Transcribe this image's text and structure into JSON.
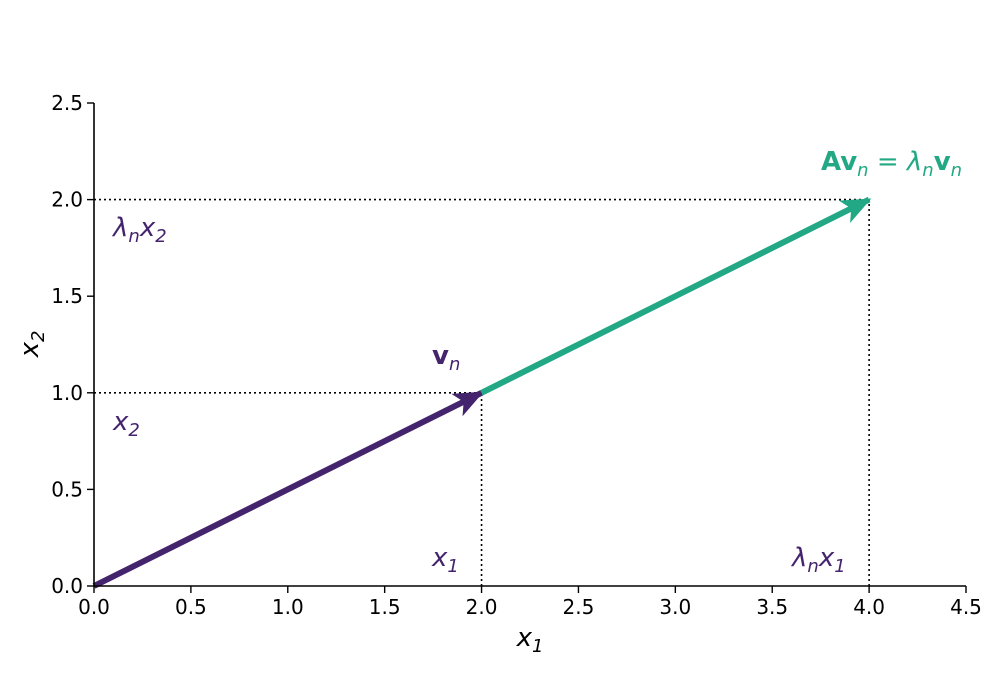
{
  "chart_data": {
    "type": "line",
    "xlabel": {
      "base": "x",
      "sub": "1"
    },
    "ylabel": {
      "base": "x",
      "sub": "2"
    },
    "xlim": [
      0,
      4.5
    ],
    "ylim": [
      0,
      2.5
    ],
    "xticks": [
      "0.0",
      "0.5",
      "1.0",
      "1.5",
      "2.0",
      "2.5",
      "3.0",
      "3.5",
      "4.0",
      "4.5"
    ],
    "yticks": [
      "0.0",
      "0.5",
      "1.0",
      "1.5",
      "2.0",
      "2.5"
    ],
    "grid": false,
    "series": [
      {
        "name": "v_n",
        "color": "#45246e",
        "from": [
          0,
          0
        ],
        "to": [
          2,
          1
        ]
      },
      {
        "name": "Av_n",
        "color": "#22a884",
        "from": [
          2,
          1
        ],
        "to": [
          4,
          2
        ]
      }
    ],
    "guides": [
      {
        "from": [
          0,
          1
        ],
        "to": [
          2,
          1
        ]
      },
      {
        "from": [
          2,
          0
        ],
        "to": [
          2,
          1
        ]
      },
      {
        "from": [
          0,
          2
        ],
        "to": [
          4,
          2
        ]
      },
      {
        "from": [
          4,
          0
        ],
        "to": [
          4,
          2
        ]
      }
    ],
    "annotations": {
      "vn": {
        "base": "v",
        "sub": "n",
        "color": "#45246e"
      },
      "avn": {
        "A": "A",
        "v": "v",
        "sub_n": "n",
        "eq": " = ",
        "lambda": "λ",
        "color": "#22a884"
      },
      "x1": {
        "base": "x",
        "sub": "1",
        "color": "#45246e"
      },
      "x2": {
        "base": "x",
        "sub": "2",
        "color": "#45246e"
      },
      "lx1": {
        "lambda": "λ",
        "sub_n": "n",
        "base": "x",
        "sub": "1",
        "color": "#45246e"
      },
      "lx2": {
        "lambda": "λ",
        "sub_n": "n",
        "base": "x",
        "sub": "2",
        "color": "#45246e"
      }
    }
  }
}
